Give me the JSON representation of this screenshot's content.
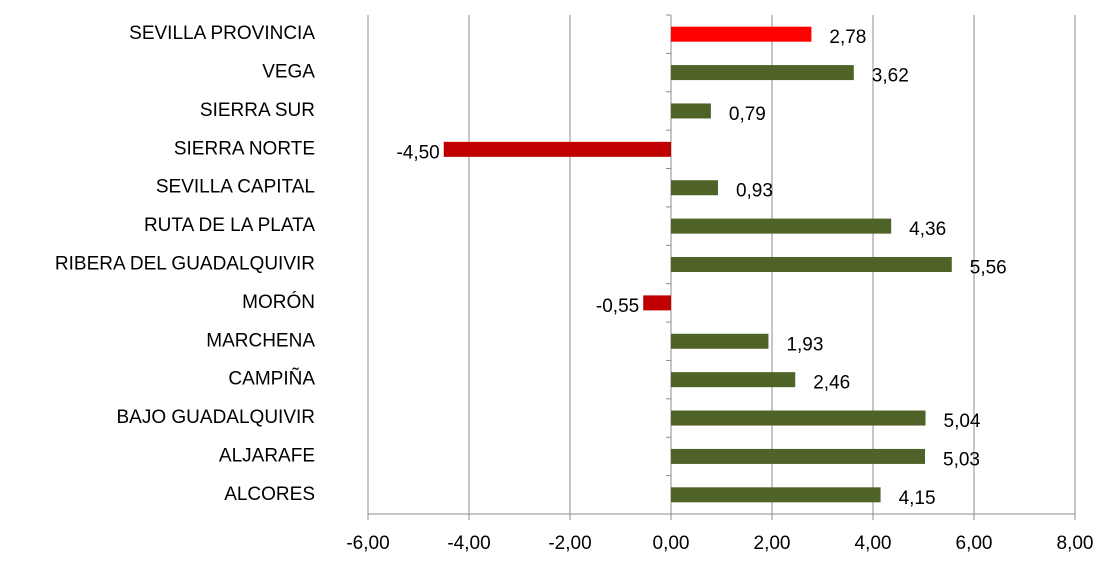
{
  "chart_data": {
    "type": "barh",
    "categories": [
      "SEVILLA PROVINCIA",
      "VEGA",
      "SIERRA SUR",
      "SIERRA NORTE",
      "SEVILLA CAPITAL",
      "RUTA DE LA PLATA",
      "RIBERA DEL GUADALQUIVIR",
      "MORÓN",
      "MARCHENA",
      "CAMPIÑA",
      "BAJO GUADALQUIVIR",
      "ALJARAFE",
      "ALCORES"
    ],
    "values": [
      2.78,
      3.62,
      0.79,
      -4.5,
      0.93,
      4.36,
      5.56,
      -0.55,
      1.93,
      2.46,
      5.04,
      5.03,
      4.15
    ],
    "value_labels": [
      "2,78",
      "3,62",
      "0,79",
      "-4,50",
      "0,93",
      "4,36",
      "5,56",
      "-0,55",
      "1,93",
      "2,46",
      "5,04",
      "5,03",
      "4,15"
    ],
    "colors": [
      "#ff0000",
      "#4f6228",
      "#4f6228",
      "#c00000",
      "#4f6228",
      "#4f6228",
      "#4f6228",
      "#c00000",
      "#4f6228",
      "#4f6228",
      "#4f6228",
      "#4f6228",
      "#4f6228"
    ],
    "xlim": [
      -6,
      8
    ],
    "xticks": [
      {
        "value": -6,
        "label": "-6,00"
      },
      {
        "value": -4,
        "label": "-4,00"
      },
      {
        "value": -2,
        "label": "-2,00"
      },
      {
        "value": 0,
        "label": "0,00"
      },
      {
        "value": 2,
        "label": "2,00"
      },
      {
        "value": 4,
        "label": "4,00"
      },
      {
        "value": 6,
        "label": "6,00"
      },
      {
        "value": 8,
        "label": "8,00"
      }
    ],
    "grid": true
  }
}
